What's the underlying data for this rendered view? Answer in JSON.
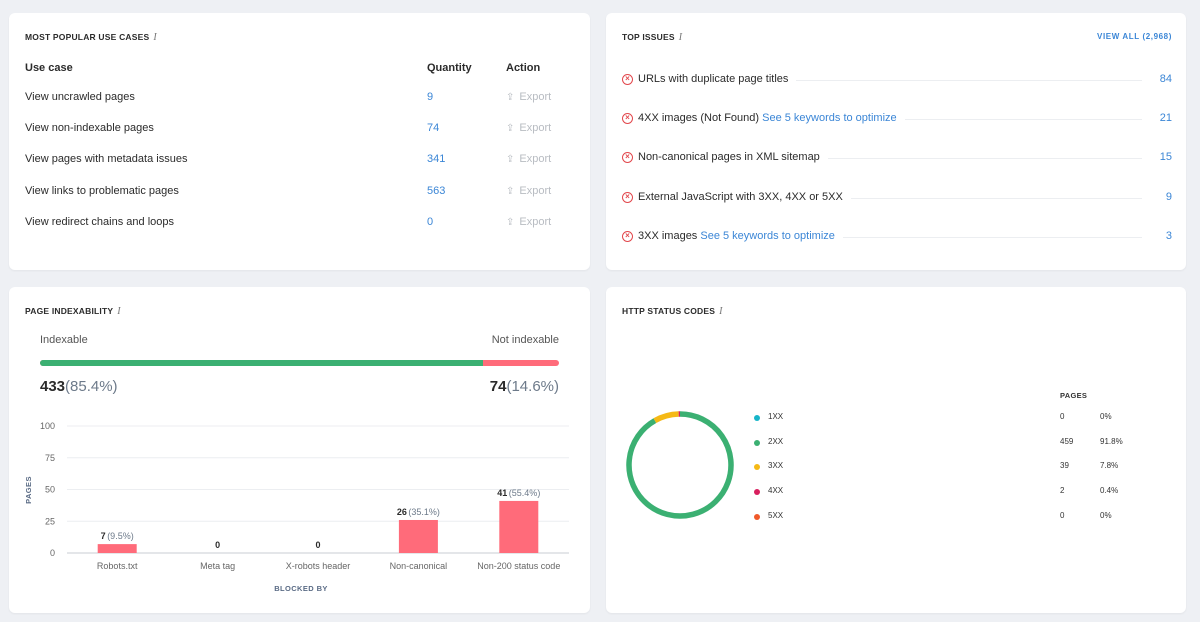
{
  "use_cases": {
    "title": "MOST POPULAR USE CASES",
    "info": "i",
    "col_use_case": "Use case",
    "col_quantity": "Quantity",
    "col_action": "Action",
    "rows": [
      {
        "name": "View uncrawled pages",
        "qty": "9",
        "action": "Export"
      },
      {
        "name": "View non-indexable pages",
        "qty": "74",
        "action": "Export"
      },
      {
        "name": "View pages with metadata issues",
        "qty": "341",
        "action": "Export"
      },
      {
        "name": "View links to problematic pages",
        "qty": "563",
        "action": "Export"
      },
      {
        "name": "View redirect chains and loops",
        "qty": "0",
        "action": "Export"
      }
    ],
    "export_icon": "upload-icon"
  },
  "top_issues": {
    "title": "TOP ISSUES",
    "info": "i",
    "view_all": "VIEW ALL (2,968)",
    "rows": [
      {
        "text": "URLs with duplicate page titles",
        "link": "",
        "count": "84"
      },
      {
        "text": "4XX images (Not Found)",
        "link": "See 5 keywords to optimize",
        "count": "21"
      },
      {
        "text": "Non-canonical pages in XML sitemap",
        "link": "",
        "count": "15"
      },
      {
        "text": "External JavaScript with 3XX, 4XX or 5XX",
        "link": "",
        "count": "9"
      },
      {
        "text": "3XX images",
        "link": "See 5 keywords to optimize",
        "count": "3"
      }
    ],
    "error_icon": "error-circle-icon"
  },
  "indexability": {
    "title": "PAGE INDEXABILITY",
    "info": "i",
    "indexable_label": "Indexable",
    "not_indexable_label": "Not indexable",
    "indexable_value": "433",
    "indexable_pct": "(85.4%)",
    "not_indexable_value": "74",
    "not_indexable_pct": "(14.6%)",
    "indexable_fraction": 0.854
  },
  "http_status": {
    "title": "HTTP STATUS CODES",
    "info": "i",
    "pages_header": "PAGES",
    "rows": [
      {
        "code": "1XX",
        "pages": "0",
        "pct": "0%",
        "color": "#17b5c9"
      },
      {
        "code": "2XX",
        "pages": "459",
        "pct": "91.8%",
        "color": "#3bb072"
      },
      {
        "code": "3XX",
        "pages": "39",
        "pct": "7.8%",
        "color": "#f5b915"
      },
      {
        "code": "4XX",
        "pages": "2",
        "pct": "0.4%",
        "color": "#d81f5e"
      },
      {
        "code": "5XX",
        "pages": "0",
        "pct": "0%",
        "color": "#f0592a"
      }
    ]
  },
  "chart_data": [
    {
      "type": "bar",
      "title": "",
      "xlabel": "BLOCKED BY",
      "ylabel": "PAGES",
      "ylim": [
        0,
        100
      ],
      "yticks": [
        0,
        25,
        50,
        75,
        100
      ],
      "categories": [
        "Robots.txt",
        "Meta tag",
        "X-robots header",
        "Non-canonical",
        "Non-200 status code"
      ],
      "values": [
        7,
        0,
        0,
        26,
        41
      ],
      "value_labels": [
        "7",
        "0",
        "0",
        "26",
        "41"
      ],
      "pct_labels": [
        "(9.5%)",
        "",
        "",
        "(35.1%)",
        "(55.4%)"
      ],
      "bar_color": "#ff6b7a",
      "grid": true
    },
    {
      "type": "pie",
      "title": "",
      "donut": true,
      "categories": [
        "1XX",
        "2XX",
        "3XX",
        "4XX",
        "5XX"
      ],
      "values": [
        0,
        459,
        39,
        2,
        0
      ],
      "colors": [
        "#17b5c9",
        "#3bb072",
        "#f5b915",
        "#d81f5e",
        "#f0592a"
      ]
    }
  ]
}
